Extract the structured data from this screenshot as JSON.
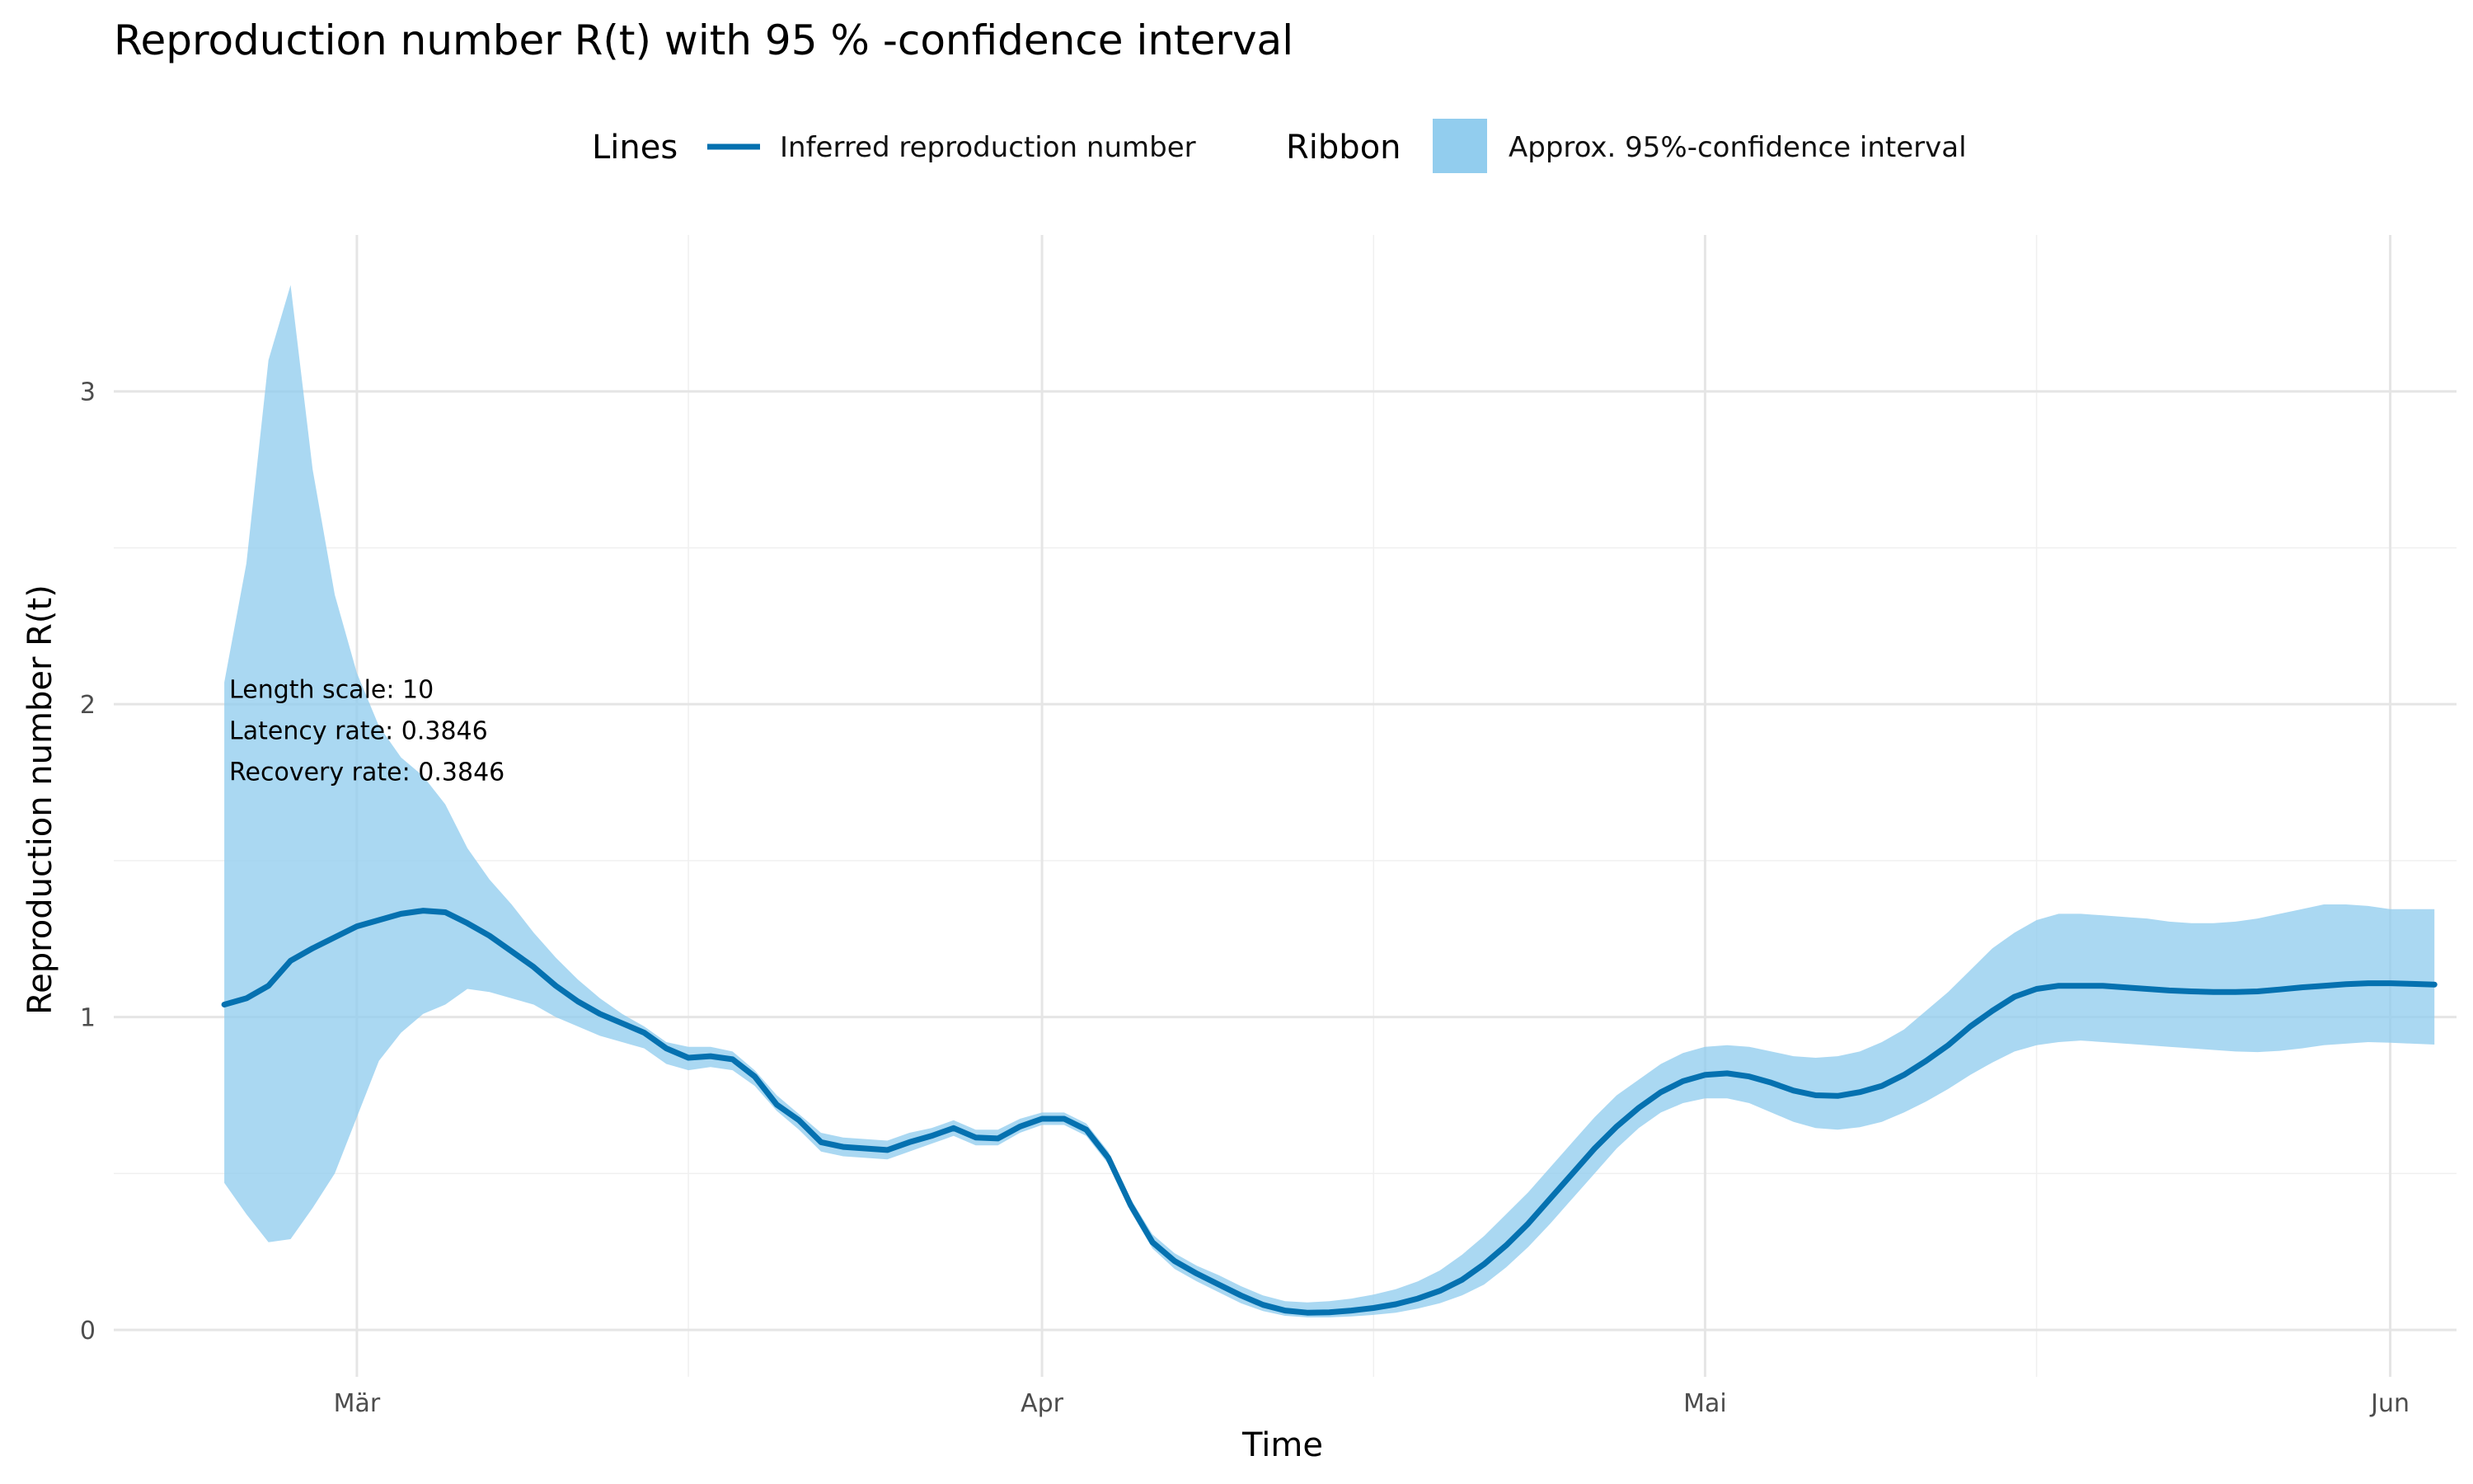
{
  "chart_data": {
    "type": "line",
    "title": "Reproduction number R(t) with 95 % -confidence interval",
    "xlabel": "Time",
    "ylabel": "Reproduction number R(t)",
    "x_range": [
      "2020-02-19",
      "2020-06-04"
    ],
    "ylim": [
      -0.15,
      3.5
    ],
    "x_ticks": [
      {
        "date": "2020-03-01",
        "label": "Mär"
      },
      {
        "date": "2020-04-01",
        "label": "Apr"
      },
      {
        "date": "2020-05-01",
        "label": "Mai"
      },
      {
        "date": "2020-06-01",
        "label": "Jun"
      }
    ],
    "x_minor_ticks": [
      "2020-03-16",
      "2020-04-16",
      "2020-05-16"
    ],
    "y_ticks": [
      0,
      1,
      2,
      3
    ],
    "y_minor_ticks": [
      0.5,
      1.5,
      2.5
    ],
    "grid": true,
    "legend": {
      "position": "top",
      "line_title": "Lines",
      "line_label": "Inferred reproduction number",
      "ribbon_title": "Ribbon",
      "ribbon_label": "Approx.  95%-confidence interval"
    },
    "annotations": [
      "Length scale: 10",
      "Latency rate: 0.3846",
      "Recovery rate: 0.3846"
    ],
    "annotation_anchor": {
      "date": "2020-02-24",
      "value": 2.02
    },
    "colors": {
      "line": "#0571b0",
      "ribbon": "#92cdee"
    },
    "series": [
      {
        "name": "Inferred reproduction number",
        "points": [
          [
            "2020-02-24",
            1.04
          ],
          [
            "2020-02-25",
            1.06
          ],
          [
            "2020-02-26",
            1.1
          ],
          [
            "2020-02-27",
            1.18
          ],
          [
            "2020-02-28",
            1.22
          ],
          [
            "2020-02-29",
            1.255
          ],
          [
            "2020-03-01",
            1.29
          ],
          [
            "2020-03-02",
            1.31
          ],
          [
            "2020-03-03",
            1.33
          ],
          [
            "2020-03-04",
            1.34
          ],
          [
            "2020-03-05",
            1.335
          ],
          [
            "2020-03-06",
            1.3
          ],
          [
            "2020-03-07",
            1.26
          ],
          [
            "2020-03-08",
            1.21
          ],
          [
            "2020-03-09",
            1.16
          ],
          [
            "2020-03-10",
            1.1
          ],
          [
            "2020-03-11",
            1.05
          ],
          [
            "2020-03-12",
            1.01
          ],
          [
            "2020-03-13",
            0.98
          ],
          [
            "2020-03-14",
            0.95
          ],
          [
            "2020-03-15",
            0.9
          ],
          [
            "2020-03-16",
            0.87
          ],
          [
            "2020-03-17",
            0.875
          ],
          [
            "2020-03-18",
            0.865
          ],
          [
            "2020-03-19",
            0.81
          ],
          [
            "2020-03-20",
            0.72
          ],
          [
            "2020-03-21",
            0.67
          ],
          [
            "2020-03-22",
            0.6
          ],
          [
            "2020-03-23",
            0.585
          ],
          [
            "2020-03-24",
            0.58
          ],
          [
            "2020-03-25",
            0.575
          ],
          [
            "2020-03-26",
            0.6
          ],
          [
            "2020-03-27",
            0.62
          ],
          [
            "2020-03-28",
            0.645
          ],
          [
            "2020-03-29",
            0.615
          ],
          [
            "2020-03-30",
            0.612
          ],
          [
            "2020-03-31",
            0.65
          ],
          [
            "2020-04-01",
            0.675
          ],
          [
            "2020-04-02",
            0.675
          ],
          [
            "2020-04-03",
            0.64
          ],
          [
            "2020-04-04",
            0.55
          ],
          [
            "2020-04-05",
            0.4
          ],
          [
            "2020-04-06",
            0.28
          ],
          [
            "2020-04-07",
            0.22
          ],
          [
            "2020-04-08",
            0.18
          ],
          [
            "2020-04-09",
            0.145
          ],
          [
            "2020-04-10",
            0.11
          ],
          [
            "2020-04-11",
            0.08
          ],
          [
            "2020-04-12",
            0.062
          ],
          [
            "2020-04-13",
            0.055
          ],
          [
            "2020-04-14",
            0.056
          ],
          [
            "2020-04-15",
            0.062
          ],
          [
            "2020-04-16",
            0.07
          ],
          [
            "2020-04-17",
            0.082
          ],
          [
            "2020-04-18",
            0.1
          ],
          [
            "2020-04-19",
            0.125
          ],
          [
            "2020-04-20",
            0.16
          ],
          [
            "2020-04-21",
            0.21
          ],
          [
            "2020-04-22",
            0.27
          ],
          [
            "2020-04-23",
            0.34
          ],
          [
            "2020-04-24",
            0.42
          ],
          [
            "2020-04-25",
            0.5
          ],
          [
            "2020-04-26",
            0.58
          ],
          [
            "2020-04-27",
            0.65
          ],
          [
            "2020-04-28",
            0.71
          ],
          [
            "2020-04-29",
            0.76
          ],
          [
            "2020-04-30",
            0.795
          ],
          [
            "2020-05-01",
            0.815
          ],
          [
            "2020-05-02",
            0.82
          ],
          [
            "2020-05-03",
            0.81
          ],
          [
            "2020-05-04",
            0.79
          ],
          [
            "2020-05-05",
            0.765
          ],
          [
            "2020-05-06",
            0.75
          ],
          [
            "2020-05-07",
            0.748
          ],
          [
            "2020-05-08",
            0.76
          ],
          [
            "2020-05-09",
            0.78
          ],
          [
            "2020-05-10",
            0.815
          ],
          [
            "2020-05-11",
            0.86
          ],
          [
            "2020-05-12",
            0.91
          ],
          [
            "2020-05-13",
            0.97
          ],
          [
            "2020-05-14",
            1.02
          ],
          [
            "2020-05-15",
            1.065
          ],
          [
            "2020-05-16",
            1.09
          ],
          [
            "2020-05-17",
            1.1
          ],
          [
            "2020-05-18",
            1.1
          ],
          [
            "2020-05-19",
            1.1
          ],
          [
            "2020-05-20",
            1.095
          ],
          [
            "2020-05-21",
            1.09
          ],
          [
            "2020-05-22",
            1.085
          ],
          [
            "2020-05-23",
            1.082
          ],
          [
            "2020-05-24",
            1.08
          ],
          [
            "2020-05-25",
            1.08
          ],
          [
            "2020-05-26",
            1.082
          ],
          [
            "2020-05-27",
            1.088
          ],
          [
            "2020-05-28",
            1.095
          ],
          [
            "2020-05-29",
            1.1
          ],
          [
            "2020-05-30",
            1.105
          ],
          [
            "2020-05-31",
            1.108
          ],
          [
            "2020-06-01",
            1.108
          ],
          [
            "2020-06-02",
            1.106
          ],
          [
            "2020-06-03",
            1.104
          ]
        ]
      },
      {
        "name": "Approx.  95%-confidence interval",
        "points": [
          [
            "2020-02-24",
            0.47,
            2.07
          ],
          [
            "2020-02-25",
            0.37,
            2.45
          ],
          [
            "2020-02-26",
            0.28,
            3.1
          ],
          [
            "2020-02-27",
            0.29,
            3.34
          ],
          [
            "2020-02-28",
            0.39,
            2.75
          ],
          [
            "2020-02-29",
            0.5,
            2.35
          ],
          [
            "2020-03-01",
            0.68,
            2.1
          ],
          [
            "2020-03-02",
            0.86,
            1.93
          ],
          [
            "2020-03-03",
            0.95,
            1.83
          ],
          [
            "2020-03-04",
            1.01,
            1.77
          ],
          [
            "2020-03-05",
            1.04,
            1.68
          ],
          [
            "2020-03-06",
            1.09,
            1.54
          ],
          [
            "2020-03-07",
            1.08,
            1.44
          ],
          [
            "2020-03-08",
            1.06,
            1.36
          ],
          [
            "2020-03-09",
            1.04,
            1.27
          ],
          [
            "2020-03-10",
            1.0,
            1.19
          ],
          [
            "2020-03-11",
            0.97,
            1.12
          ],
          [
            "2020-03-12",
            0.94,
            1.06
          ],
          [
            "2020-03-13",
            0.92,
            1.01
          ],
          [
            "2020-03-14",
            0.9,
            0.97
          ],
          [
            "2020-03-15",
            0.85,
            0.92
          ],
          [
            "2020-03-16",
            0.83,
            0.905
          ],
          [
            "2020-03-17",
            0.84,
            0.905
          ],
          [
            "2020-03-18",
            0.83,
            0.89
          ],
          [
            "2020-03-19",
            0.78,
            0.83
          ],
          [
            "2020-03-20",
            0.7,
            0.75
          ],
          [
            "2020-03-21",
            0.64,
            0.69
          ],
          [
            "2020-03-22",
            0.57,
            0.63
          ],
          [
            "2020-03-23",
            0.555,
            0.615
          ],
          [
            "2020-03-24",
            0.55,
            0.61
          ],
          [
            "2020-03-25",
            0.545,
            0.605
          ],
          [
            "2020-03-26",
            0.57,
            0.63
          ],
          [
            "2020-03-27",
            0.595,
            0.645
          ],
          [
            "2020-03-28",
            0.62,
            0.67
          ],
          [
            "2020-03-29",
            0.59,
            0.64
          ],
          [
            "2020-03-30",
            0.59,
            0.64
          ],
          [
            "2020-03-31",
            0.63,
            0.675
          ],
          [
            "2020-04-01",
            0.655,
            0.695
          ],
          [
            "2020-04-02",
            0.655,
            0.695
          ],
          [
            "2020-04-03",
            0.62,
            0.66
          ],
          [
            "2020-04-04",
            0.53,
            0.57
          ],
          [
            "2020-04-05",
            0.38,
            0.42
          ],
          [
            "2020-04-06",
            0.26,
            0.305
          ],
          [
            "2020-04-07",
            0.195,
            0.245
          ],
          [
            "2020-04-08",
            0.155,
            0.205
          ],
          [
            "2020-04-09",
            0.12,
            0.175
          ],
          [
            "2020-04-10",
            0.085,
            0.14
          ],
          [
            "2020-04-11",
            0.06,
            0.11
          ],
          [
            "2020-04-12",
            0.045,
            0.092
          ],
          [
            "2020-04-13",
            0.04,
            0.088
          ],
          [
            "2020-04-14",
            0.04,
            0.092
          ],
          [
            "2020-04-15",
            0.043,
            0.1
          ],
          [
            "2020-04-16",
            0.048,
            0.113
          ],
          [
            "2020-04-17",
            0.055,
            0.13
          ],
          [
            "2020-04-18",
            0.068,
            0.155
          ],
          [
            "2020-04-19",
            0.085,
            0.19
          ],
          [
            "2020-04-20",
            0.11,
            0.24
          ],
          [
            "2020-04-21",
            0.145,
            0.3
          ],
          [
            "2020-04-22",
            0.2,
            0.37
          ],
          [
            "2020-04-23",
            0.265,
            0.44
          ],
          [
            "2020-04-24",
            0.34,
            0.52
          ],
          [
            "2020-04-25",
            0.42,
            0.6
          ],
          [
            "2020-04-26",
            0.5,
            0.68
          ],
          [
            "2020-04-27",
            0.58,
            0.75
          ],
          [
            "2020-04-28",
            0.645,
            0.8
          ],
          [
            "2020-04-29",
            0.695,
            0.85
          ],
          [
            "2020-04-30",
            0.725,
            0.885
          ],
          [
            "2020-05-01",
            0.74,
            0.905
          ],
          [
            "2020-05-02",
            0.74,
            0.91
          ],
          [
            "2020-05-03",
            0.725,
            0.905
          ],
          [
            "2020-05-04",
            0.695,
            0.89
          ],
          [
            "2020-05-05",
            0.665,
            0.875
          ],
          [
            "2020-05-06",
            0.645,
            0.87
          ],
          [
            "2020-05-07",
            0.64,
            0.875
          ],
          [
            "2020-05-08",
            0.648,
            0.89
          ],
          [
            "2020-05-09",
            0.665,
            0.92
          ],
          [
            "2020-05-10",
            0.695,
            0.96
          ],
          [
            "2020-05-11",
            0.73,
            1.02
          ],
          [
            "2020-05-12",
            0.77,
            1.08
          ],
          [
            "2020-05-13",
            0.815,
            1.15
          ],
          [
            "2020-05-14",
            0.855,
            1.22
          ],
          [
            "2020-05-15",
            0.89,
            1.27
          ],
          [
            "2020-05-16",
            0.91,
            1.31
          ],
          [
            "2020-05-17",
            0.92,
            1.33
          ],
          [
            "2020-05-18",
            0.925,
            1.33
          ],
          [
            "2020-05-19",
            0.92,
            1.325
          ],
          [
            "2020-05-20",
            0.915,
            1.32
          ],
          [
            "2020-05-21",
            0.91,
            1.315
          ],
          [
            "2020-05-22",
            0.905,
            1.305
          ],
          [
            "2020-05-23",
            0.9,
            1.3
          ],
          [
            "2020-05-24",
            0.895,
            1.3
          ],
          [
            "2020-05-25",
            0.89,
            1.305
          ],
          [
            "2020-05-26",
            0.888,
            1.315
          ],
          [
            "2020-05-27",
            0.892,
            1.33
          ],
          [
            "2020-05-28",
            0.9,
            1.345
          ],
          [
            "2020-05-29",
            0.91,
            1.36
          ],
          [
            "2020-05-30",
            0.915,
            1.36
          ],
          [
            "2020-05-31",
            0.92,
            1.355
          ],
          [
            "2020-06-01",
            0.918,
            1.345
          ],
          [
            "2020-06-02",
            0.915,
            1.345
          ],
          [
            "2020-06-03",
            0.912,
            1.345
          ]
        ]
      }
    ]
  }
}
